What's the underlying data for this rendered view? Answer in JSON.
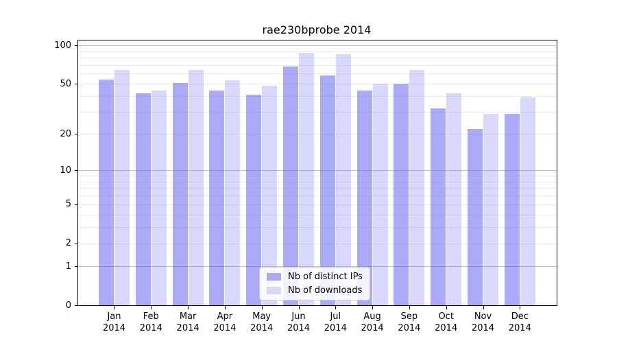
{
  "chart_data": {
    "type": "bar",
    "title": "rae230bprobe 2014",
    "categories": [
      "Jan",
      "Feb",
      "Mar",
      "Apr",
      "May",
      "Jun",
      "Jul",
      "Aug",
      "Sep",
      "Oct",
      "Nov",
      "Dec"
    ],
    "year": "2014",
    "series": [
      {
        "name": "Nb of distinct IPs",
        "swatch_color": "#a9a9f2",
        "fill_color": "rgba(85,85,240,0.50)",
        "values": [
          54,
          42,
          51,
          44,
          41,
          68,
          58,
          44,
          50,
          32,
          22,
          29
        ]
      },
      {
        "name": "Nb of downloads",
        "swatch_color": "#d8d8f8",
        "fill_color": "rgba(85,85,240,0.23)",
        "values": [
          64,
          44,
          64,
          53,
          48,
          87,
          85,
          50,
          64,
          42,
          29,
          39
        ]
      }
    ],
    "y_ticks": [
      0,
      1,
      2,
      5,
      10,
      20,
      50,
      100
    ],
    "major_gridlines": [
      1,
      10,
      100
    ],
    "minor_gridlines": [
      2,
      3,
      4,
      5,
      6,
      7,
      8,
      9,
      20,
      30,
      40,
      50,
      60,
      70,
      80,
      90
    ],
    "scale": "log1p",
    "ylim": [
      0,
      109
    ],
    "grid": true,
    "legend_position": "lower-center-inside",
    "colors": {
      "frame": "#000000",
      "major_grid": "#c3c3c3",
      "minor_grid": "#ececec",
      "background": "#ffffff"
    }
  }
}
